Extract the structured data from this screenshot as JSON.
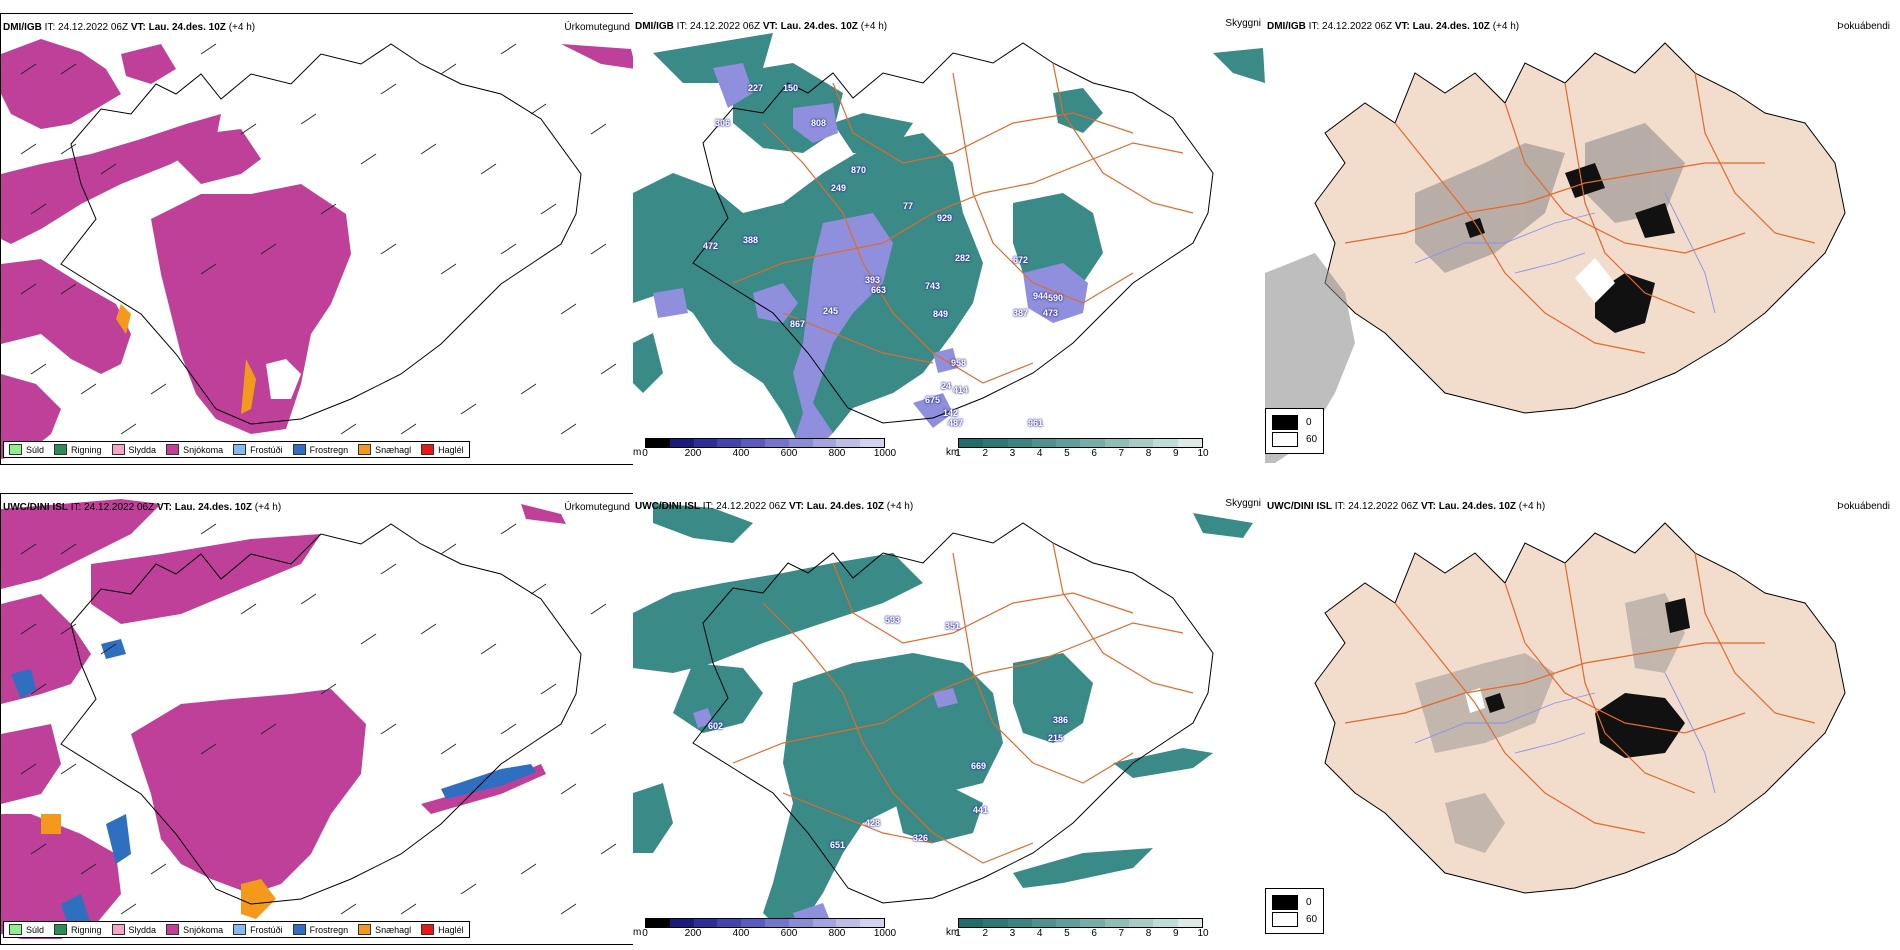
{
  "rows": [
    {
      "model": "DMI/IGB",
      "it_label": "IT:",
      "it_value": "24.12.2022 06Z",
      "vt_label": "VT:",
      "vt_value": "Lau. 24.des. 10Z",
      "lead": "(+4 h)",
      "vis_labels": [
        "227",
        "150",
        "306",
        "808",
        "249",
        "870",
        "929",
        "77",
        "472",
        "388",
        "282",
        "672",
        "944",
        "590",
        "387",
        "473",
        "393",
        "245",
        "663",
        "743",
        "849",
        "867",
        "958",
        "414",
        "675",
        "24",
        "142",
        "487",
        "961"
      ]
    },
    {
      "model": "UWC/DINI ISL",
      "it_label": "IT:",
      "it_value": "24.12.2022 06Z",
      "vt_label": "VT:",
      "vt_value": "Lau. 24.des. 10Z",
      "lead": "(+4 h)",
      "vis_labels": [
        "593",
        "351",
        "602",
        "386",
        "215",
        "669",
        "441",
        "326",
        "651",
        "428"
      ]
    }
  ],
  "panels": {
    "precip": {
      "title": "Úrkomutegund"
    },
    "visibility": {
      "title": "Skyggni"
    },
    "fog": {
      "title": "Þokuábendi"
    }
  },
  "precip_legend": [
    {
      "label": "Súld",
      "color": "#90ee90"
    },
    {
      "label": "Rigning",
      "color": "#2e8b57"
    },
    {
      "label": "Slydda",
      "color": "#f4a6c8"
    },
    {
      "label": "Snjókoma",
      "color": "#bf4099"
    },
    {
      "label": "Frostúði",
      "color": "#87b8f0"
    },
    {
      "label": "Frostregn",
      "color": "#2e6fc0"
    },
    {
      "label": "Snæhagl",
      "color": "#f39a1c"
    },
    {
      "label": "Haglél",
      "color": "#e81818"
    }
  ],
  "ceiling_bar": {
    "unit": "m",
    "ticks": [
      "0",
      "200",
      "400",
      "600",
      "800",
      "1000"
    ],
    "colors": [
      "#000000",
      "#1a1a7a",
      "#2e2e9a",
      "#4444b0",
      "#5a5ac0",
      "#7474cc",
      "#8c8cd6",
      "#a4a4de",
      "#bcbce6",
      "#d2d2ee"
    ]
  },
  "vis_bar": {
    "unit": "km",
    "ticks": [
      "1",
      "2",
      "3",
      "4",
      "5",
      "6",
      "7",
      "8",
      "9",
      "10"
    ],
    "colors": [
      "#1e6e6e",
      "#2a7a78",
      "#378684",
      "#4a938f",
      "#5ea09b",
      "#74aea8",
      "#8cbdb6",
      "#a6ccc6",
      "#c0dcd6",
      "#dcebe8"
    ]
  },
  "fog_legend": [
    {
      "label": "0",
      "color": "#000000"
    },
    {
      "label": "60",
      "color": "#ffffff"
    }
  ],
  "colors": {
    "snow": "#bf4099",
    "teal": "#3a8a88",
    "land": "#f2dccc",
    "roads": "#e26a2c",
    "rivers": "#8a90f0",
    "ceiling": "#8f8fde"
  }
}
